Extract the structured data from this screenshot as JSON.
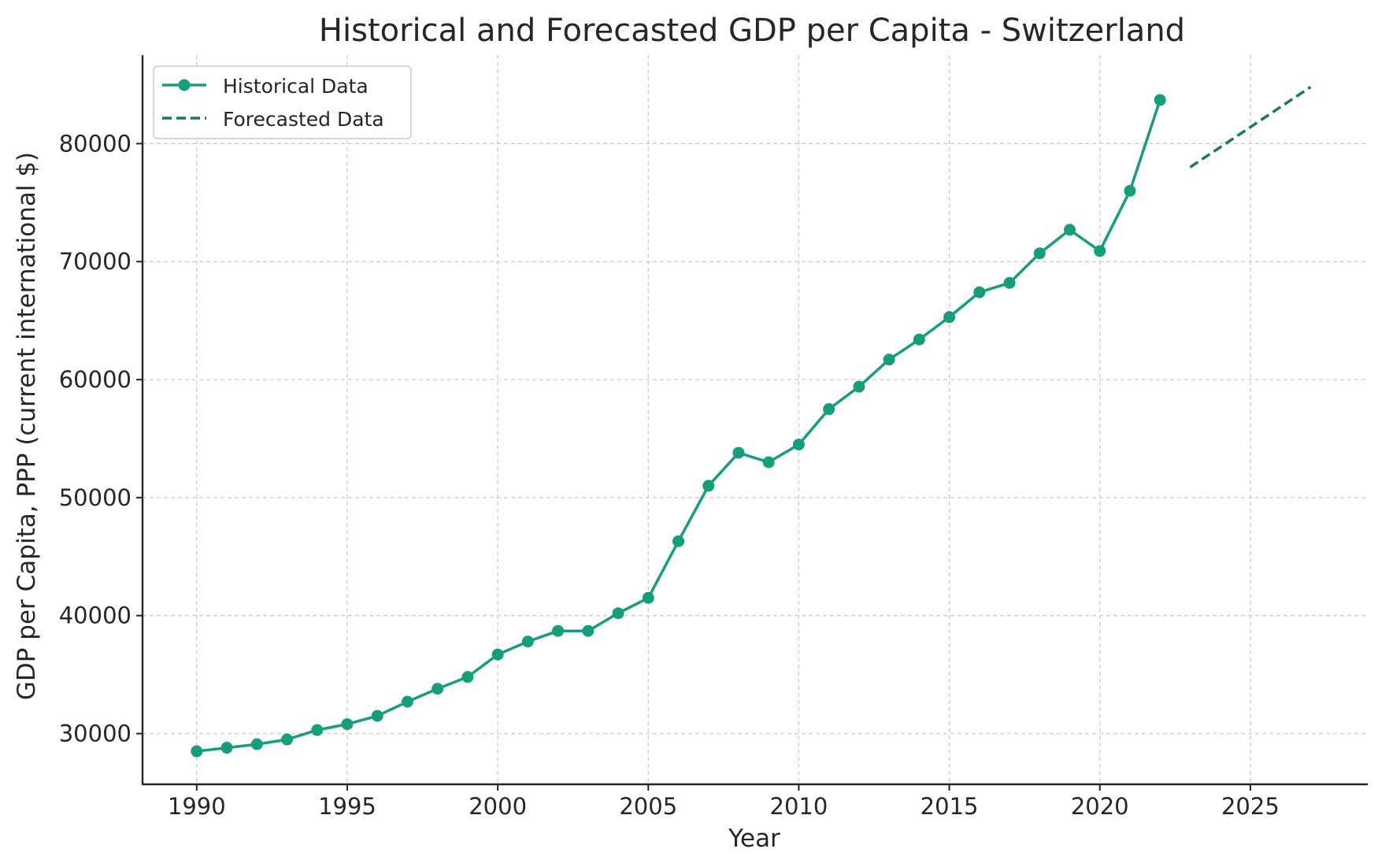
{
  "chart_data": {
    "type": "line",
    "title": "Historical and Forecasted GDP per Capita - Switzerland",
    "xlabel": "Year",
    "ylabel": "GDP per Capita, PPP (current international $)",
    "xlim": [
      1988.2,
      2028.9
    ],
    "ylim": [
      25700,
      87500
    ],
    "x_ticks": [
      1990,
      1995,
      2000,
      2005,
      2010,
      2015,
      2020,
      2025
    ],
    "y_ticks": [
      30000,
      40000,
      50000,
      60000,
      70000,
      80000
    ],
    "grid": true,
    "legend_position": "top-left",
    "series": [
      {
        "name": "Historical Data",
        "style": "solid-with-markers",
        "color": "#169e7c",
        "x": [
          1990,
          1991,
          1992,
          1993,
          1994,
          1995,
          1996,
          1997,
          1998,
          1999,
          2000,
          2001,
          2002,
          2003,
          2004,
          2005,
          2006,
          2007,
          2008,
          2009,
          2010,
          2011,
          2012,
          2013,
          2014,
          2015,
          2016,
          2017,
          2018,
          2019,
          2020,
          2021,
          2022
        ],
        "y": [
          28500,
          28800,
          29100,
          29500,
          30300,
          30800,
          31500,
          32700,
          33800,
          34800,
          36700,
          37800,
          38700,
          38700,
          40200,
          41500,
          46300,
          51000,
          53800,
          53000,
          54500,
          57500,
          59400,
          61700,
          63400,
          65300,
          67400,
          68200,
          70700,
          72700,
          70900,
          76000,
          83700
        ]
      },
      {
        "name": "Forecasted Data",
        "style": "dashed",
        "color": "#167a5e",
        "x": [
          2023,
          2024,
          2025,
          2026,
          2027
        ],
        "y": [
          78000,
          79700,
          81400,
          83100,
          84800
        ]
      }
    ]
  }
}
